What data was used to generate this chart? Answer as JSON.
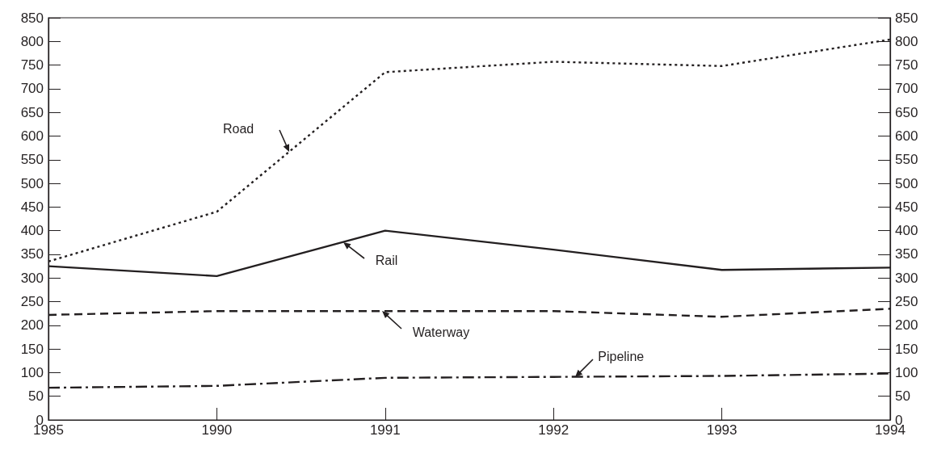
{
  "chart_data": {
    "type": "line",
    "categories": [
      "1985",
      "1990",
      "1991",
      "1992",
      "1993",
      "1994"
    ],
    "series": [
      {
        "name": "Road",
        "color": "#231f20",
        "line_style": "dotted",
        "values": [
          335,
          440,
          735,
          757,
          748,
          804
        ]
      },
      {
        "name": "Rail",
        "color": "#231f20",
        "line_style": "solid",
        "values": [
          325,
          304,
          400,
          360,
          317,
          322
        ]
      },
      {
        "name": "Waterway",
        "color": "#231f20",
        "line_style": "dashed",
        "values": [
          222,
          230,
          230,
          230,
          218,
          235
        ]
      },
      {
        "name": "Pipeline",
        "color": "#231f20",
        "line_style": "dashdot",
        "values": [
          68,
          72,
          89,
          91,
          93,
          98
        ]
      }
    ],
    "ylim": [
      0,
      850
    ],
    "yticks": [
      0,
      50,
      100,
      150,
      200,
      250,
      300,
      350,
      400,
      450,
      500,
      550,
      600,
      650,
      700,
      750,
      800,
      850
    ],
    "y2lim": [
      0,
      850
    ],
    "y2ticks": [
      0,
      50,
      100,
      150,
      200,
      250,
      300,
      350,
      400,
      450,
      500,
      550,
      600,
      650,
      700,
      750,
      800,
      850
    ],
    "grid": false,
    "legend": false,
    "marker": "none"
  }
}
